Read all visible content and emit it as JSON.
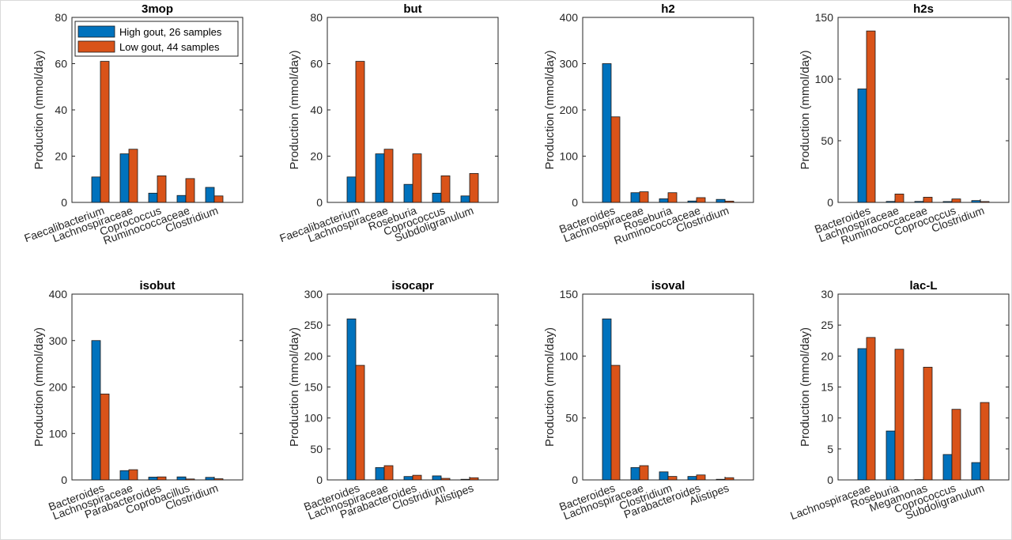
{
  "colors": {
    "high": "#0072BD",
    "low": "#D95319"
  },
  "legend": {
    "position": "top-left of first panel",
    "entries": [
      {
        "key": "high",
        "label": "High gout, 26 samples"
      },
      {
        "key": "low",
        "label": "Low gout, 44 samples"
      }
    ]
  },
  "chart_data": [
    {
      "type": "bar",
      "title": "3mop",
      "ylabel": "Production (mmol/day)",
      "ylim": [
        0,
        80
      ],
      "yticks": [
        0,
        20,
        40,
        60,
        80
      ],
      "categories": [
        "Faecalibacterium",
        "Lachnospiraceae",
        "Coprococcus",
        "Ruminococcaceae",
        "Clostridium"
      ],
      "series": [
        {
          "name": "High gout, 26 samples",
          "key": "high",
          "values": [
            11,
            21,
            4,
            3,
            6.5
          ]
        },
        {
          "name": "Low gout, 44 samples",
          "key": "low",
          "values": [
            61,
            23,
            11.5,
            10.3,
            2.8
          ]
        }
      ]
    },
    {
      "type": "bar",
      "title": "but",
      "ylabel": "Production (mmol/day)",
      "ylim": [
        0,
        80
      ],
      "yticks": [
        0,
        20,
        40,
        60,
        80
      ],
      "categories": [
        "Faecalibacterium",
        "Lachnospiraceae",
        "Roseburia",
        "Coprococcus",
        "Subdoligranulum"
      ],
      "series": [
        {
          "name": "High gout, 26 samples",
          "key": "high",
          "values": [
            11,
            21,
            7.8,
            4,
            2.8
          ]
        },
        {
          "name": "Low gout, 44 samples",
          "key": "low",
          "values": [
            61,
            23,
            21,
            11.5,
            12.5
          ]
        }
      ]
    },
    {
      "type": "bar",
      "title": "h2",
      "ylabel": "Production (mmol/day)",
      "ylim": [
        0,
        400
      ],
      "yticks": [
        0,
        100,
        200,
        300,
        400
      ],
      "categories": [
        "Bacteroides",
        "Lachnospiraceae",
        "Roseburia",
        "Ruminococcaceae",
        "Clostridium"
      ],
      "series": [
        {
          "name": "High gout, 26 samples",
          "key": "high",
          "values": [
            300,
            21,
            7.8,
            3,
            6.5
          ]
        },
        {
          "name": "Low gout, 44 samples",
          "key": "low",
          "values": [
            185,
            23,
            21,
            10.3,
            2.8
          ]
        }
      ]
    },
    {
      "type": "bar",
      "title": "h2s",
      "ylabel": "Production (mmol/day)",
      "ylim": [
        0,
        150
      ],
      "yticks": [
        0,
        50,
        100,
        150
      ],
      "categories": [
        "Bacteroides",
        "Lachnospiraceae",
        "Ruminococcaceae",
        "Coprococcus",
        "Clostridium"
      ],
      "series": [
        {
          "name": "High gout, 26 samples",
          "key": "high",
          "values": [
            92,
            0.8,
            0.8,
            0.7,
            1.5
          ]
        },
        {
          "name": "Low gout, 44 samples",
          "key": "low",
          "values": [
            139,
            6.8,
            4.2,
            2.8,
            0.7
          ]
        }
      ]
    },
    {
      "type": "bar",
      "title": "isobut",
      "ylabel": "Production (mmol/day)",
      "ylim": [
        0,
        400
      ],
      "yticks": [
        0,
        100,
        200,
        300,
        400
      ],
      "categories": [
        "Bacteroides",
        "Lachnospiraceae",
        "Parabacteroides",
        "Coprobacillus",
        "Clostridium"
      ],
      "series": [
        {
          "name": "High gout, 26 samples",
          "key": "high",
          "values": [
            300,
            20,
            6,
            6.5,
            5.5
          ]
        },
        {
          "name": "Low gout, 44 samples",
          "key": "low",
          "values": [
            185,
            22,
            6.5,
            2,
            2.5
          ]
        }
      ]
    },
    {
      "type": "bar",
      "title": "isocapr",
      "ylabel": "Production (mmol/day)",
      "ylim": [
        0,
        300
      ],
      "yticks": [
        0,
        50,
        100,
        150,
        200,
        250,
        300
      ],
      "categories": [
        "Bacteroides",
        "Lachnospiraceae",
        "Parabacteroides",
        "Clostridium",
        "Alistipes"
      ],
      "series": [
        {
          "name": "High gout, 26 samples",
          "key": "high",
          "values": [
            260,
            20,
            5.5,
            6.5,
            1
          ]
        },
        {
          "name": "Low gout, 44 samples",
          "key": "low",
          "values": [
            185,
            23,
            7.5,
            2.5,
            3.5
          ]
        }
      ]
    },
    {
      "type": "bar",
      "title": "isoval",
      "ylabel": "Production (mmol/day)",
      "ylim": [
        0,
        150
      ],
      "yticks": [
        0,
        50,
        100,
        150
      ],
      "categories": [
        "Bacteroides",
        "Lachnospiraceae",
        "Clostridium",
        "Parabacteroides",
        "Alistipes"
      ],
      "series": [
        {
          "name": "High gout, 26 samples",
          "key": "high",
          "values": [
            130,
            10,
            6.5,
            2.8,
            0.5
          ]
        },
        {
          "name": "Low gout, 44 samples",
          "key": "low",
          "values": [
            92.5,
            11.5,
            2.8,
            4,
            1.8
          ]
        }
      ]
    },
    {
      "type": "bar",
      "title": "lac-L",
      "ylabel": "Production (mmol/day)",
      "ylim": [
        0,
        30
      ],
      "yticks": [
        0,
        5,
        10,
        15,
        20,
        25,
        30
      ],
      "categories": [
        "Lachnospiraceae",
        "Roseburia",
        "Megamonas",
        "Coprococcus",
        "Subdoligranulum"
      ],
      "series": [
        {
          "name": "High gout, 26 samples",
          "key": "high",
          "values": [
            21.2,
            7.9,
            0.05,
            4.1,
            2.8
          ]
        },
        {
          "name": "Low gout, 44 samples",
          "key": "low",
          "values": [
            23,
            21.1,
            18.2,
            11.4,
            12.5
          ]
        }
      ]
    }
  ]
}
